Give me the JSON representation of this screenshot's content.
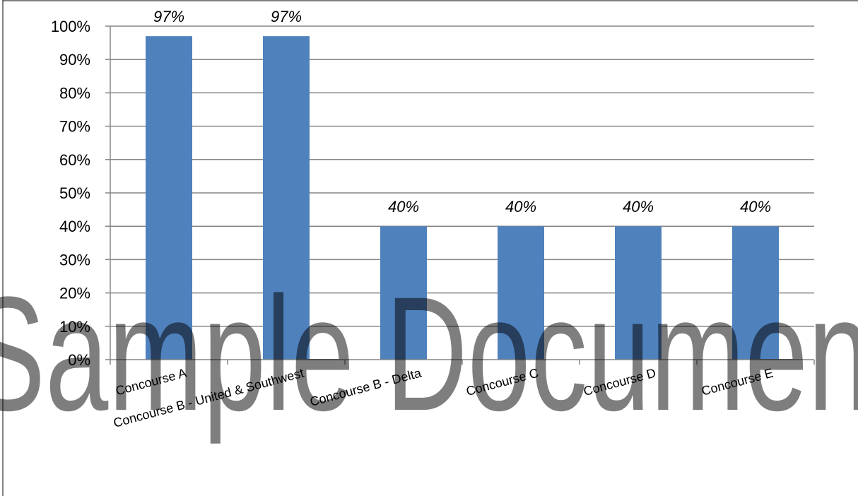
{
  "chart_data": {
    "type": "bar",
    "categories": [
      "Concourse A",
      "Concourse B - United & Southwest",
      "Concourse B - Delta",
      "Concourse C",
      "Concourse D",
      "Concourse E"
    ],
    "values": [
      0.97,
      0.97,
      0.4,
      0.4,
      0.4,
      0.4
    ],
    "data_labels": [
      "97%",
      "97%",
      "40%",
      "40%",
      "40%",
      "40%"
    ],
    "y_ticks": [
      "0%",
      "10%",
      "20%",
      "30%",
      "40%",
      "50%",
      "60%",
      "70%",
      "80%",
      "90%",
      "100%"
    ],
    "ylim": [
      0,
      1
    ],
    "grid": true,
    "bar_color": "#4f81bd",
    "grid_color": "#868686"
  },
  "watermark": "Sample Document"
}
